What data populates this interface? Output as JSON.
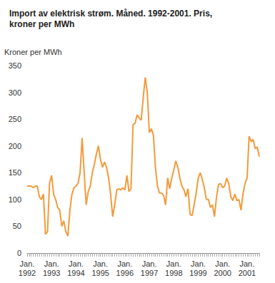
{
  "chart_data": {
    "type": "line",
    "title": "Import av elektrisk strøm. Måned. 1992-2001. Pris, kroner per MWh",
    "y_label": "Kroner per MWh",
    "categories": [
      "Jan. 1992",
      null,
      null,
      null,
      null,
      null,
      null,
      null,
      null,
      null,
      null,
      null,
      "Jan. 1993",
      null,
      null,
      null,
      null,
      null,
      null,
      null,
      null,
      null,
      null,
      null,
      "Jan. 1994",
      null,
      null,
      null,
      null,
      null,
      null,
      null,
      null,
      null,
      null,
      null,
      "Jan. 1995",
      null,
      null,
      null,
      null,
      null,
      null,
      null,
      null,
      null,
      null,
      null,
      "Jan. 1996",
      null,
      null,
      null,
      null,
      null,
      null,
      null,
      null,
      null,
      null,
      null,
      "Jan. 1997",
      null,
      null,
      null,
      null,
      null,
      null,
      null,
      null,
      null,
      null,
      null,
      "Jan. 1998",
      null,
      null,
      null,
      null,
      null,
      null,
      null,
      null,
      null,
      null,
      null,
      "Jan. 1999",
      null,
      null,
      null,
      null,
      null,
      null,
      null,
      null,
      null,
      null,
      null,
      "Jan. 2000",
      null,
      null,
      null,
      null,
      null,
      null,
      null,
      null,
      null,
      null,
      null,
      "Jan. 2001",
      null,
      null,
      null,
      null,
      null,
      null
    ],
    "values": [
      125,
      125,
      125,
      122,
      125,
      125,
      105,
      100,
      110,
      35,
      40,
      130,
      145,
      110,
      100,
      85,
      80,
      50,
      60,
      40,
      32,
      80,
      110,
      122,
      125,
      130,
      150,
      215,
      150,
      90,
      115,
      125,
      150,
      165,
      185,
      200,
      175,
      160,
      170,
      160,
      140,
      110,
      68,
      90,
      118,
      120,
      118,
      122,
      118,
      145,
      115,
      120,
      240,
      242,
      258,
      252,
      248,
      290,
      328,
      300,
      225,
      232,
      220,
      160,
      125,
      112,
      112,
      108,
      90,
      140,
      120,
      140,
      155,
      172,
      160,
      140,
      125,
      118,
      105,
      120,
      72,
      70,
      90,
      112,
      140,
      150,
      138,
      122,
      100,
      100,
      85,
      90,
      68,
      105,
      128,
      130,
      122,
      125,
      140,
      130,
      105,
      98,
      110,
      98,
      100,
      80,
      110,
      130,
      140,
      218,
      208,
      212,
      195,
      198,
      180
    ],
    "color": "#f39a3c",
    "ylim": [
      0,
      350
    ],
    "yticks": [
      0,
      50,
      100,
      150,
      200,
      250,
      300,
      350
    ],
    "grid": false
  }
}
